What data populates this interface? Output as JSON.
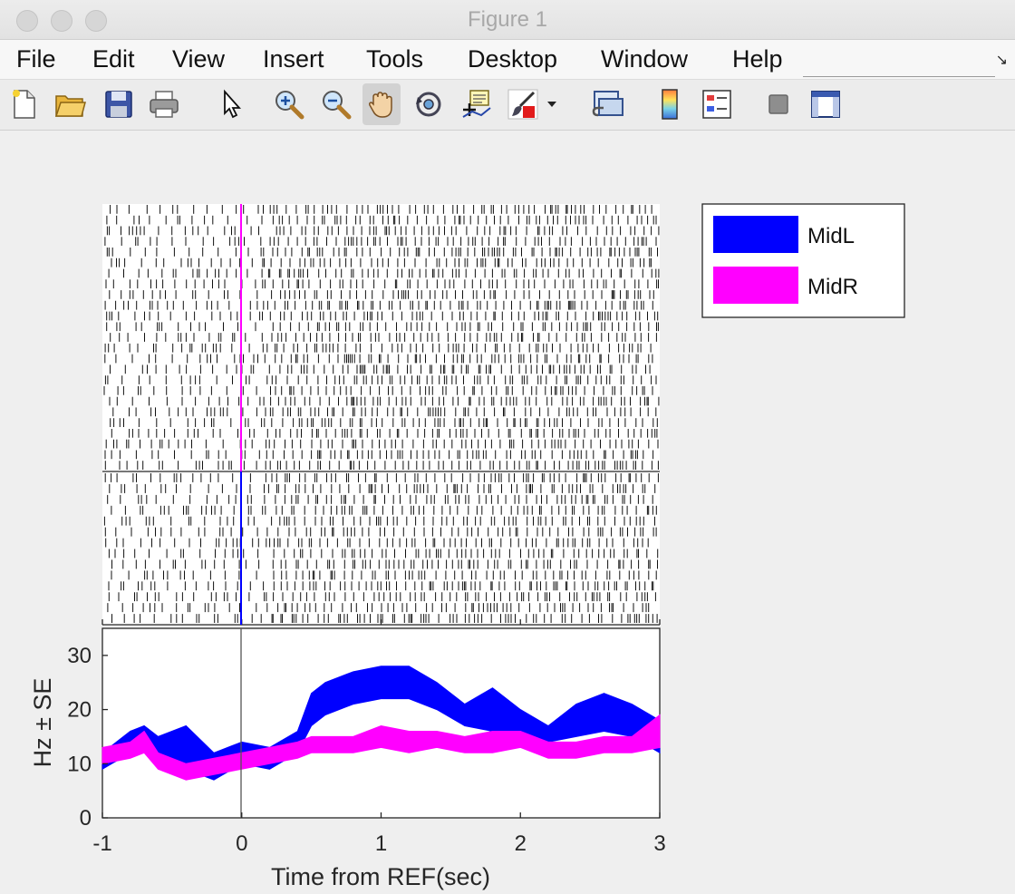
{
  "window": {
    "title": "Figure 1"
  },
  "menu": [
    "File",
    "Edit",
    "View",
    "Insert",
    "Tools",
    "Desktop",
    "Window",
    "Help"
  ],
  "toolbar": [
    "new-figure-icon",
    "open-file-icon",
    "save-icon",
    "print-icon",
    "pointer-icon",
    "zoom-in-icon",
    "zoom-out-icon",
    "pan-hand-icon",
    "rotate-3d-icon",
    "data-cursor-icon",
    "brush-icon",
    "brush-dropdown-icon",
    "link-plot-icon",
    "colorbar-icon",
    "legend-icon",
    "hide-plot-tools-icon",
    "show-plot-tools-icon"
  ],
  "colors": {
    "midL": "#0000ff",
    "midR": "#ff00ff",
    "axis": "#262626"
  },
  "legend": [
    {
      "label": "MidL",
      "color": "#0000ff"
    },
    {
      "label": "MidR",
      "color": "#ff00ff"
    }
  ],
  "raster": {
    "xlim": [
      -1,
      3
    ],
    "groups": [
      {
        "name": "MidR",
        "trials": 25,
        "color": "#ff00ff"
      },
      {
        "name": "MidL",
        "trials": 14,
        "color": "#0000ff"
      }
    ]
  },
  "chart_data": {
    "type": "area",
    "xlabel": "Time from REF(sec)",
    "ylabel": "Hz ± SE",
    "xlim": [
      -1,
      3
    ],
    "ylim": [
      0,
      35
    ],
    "xticks": [
      "-1",
      "0",
      "1",
      "2",
      "3"
    ],
    "yticks": [
      "0",
      "10",
      "20",
      "30"
    ],
    "grid": false,
    "legend_position": "outside-top-right",
    "reference_line_x": 0,
    "x": [
      -1.0,
      -0.8,
      -0.7,
      -0.6,
      -0.4,
      -0.2,
      0.0,
      0.2,
      0.4,
      0.5,
      0.6,
      0.8,
      1.0,
      1.2,
      1.4,
      1.6,
      1.8,
      2.0,
      2.2,
      2.4,
      2.6,
      2.8,
      3.0
    ],
    "series": [
      {
        "name": "MidL",
        "color": "#0000ff",
        "lower": [
          9,
          12,
          13,
          11,
          9,
          7,
          10,
          9,
          12,
          17,
          19,
          21,
          22,
          22,
          20,
          17,
          16,
          15,
          14,
          15,
          16,
          15,
          12
        ],
        "upper": [
          12,
          16,
          17,
          15,
          17,
          12,
          14,
          13,
          16,
          23,
          25,
          27,
          28,
          28,
          25,
          21,
          24,
          20,
          17,
          21,
          23,
          21,
          18
        ]
      },
      {
        "name": "MidR",
        "color": "#ff00ff",
        "lower": [
          10,
          11,
          12,
          9,
          7,
          8,
          9,
          10,
          11,
          12,
          12,
          12,
          13,
          12,
          13,
          12,
          12,
          13,
          11,
          11,
          12,
          12,
          13
        ],
        "upper": [
          13,
          14,
          16,
          12,
          10,
          11,
          12,
          13,
          14,
          15,
          15,
          15,
          17,
          16,
          16,
          15,
          16,
          16,
          14,
          14,
          15,
          15,
          19
        ]
      }
    ]
  }
}
